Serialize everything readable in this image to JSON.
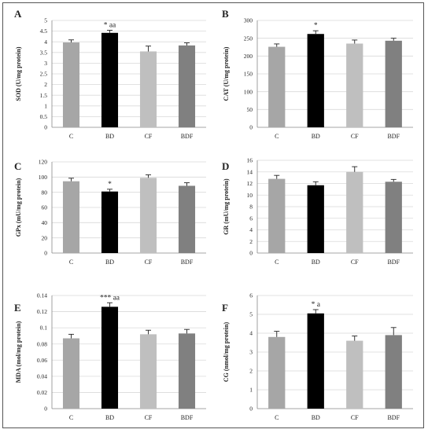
{
  "chart_data": [
    {
      "panel": "A",
      "type": "bar",
      "categories": [
        "C",
        "BD",
        "CF",
        "BDF"
      ],
      "values": [
        3.97,
        4.42,
        3.55,
        3.83
      ],
      "errors": [
        0.12,
        0.12,
        0.25,
        0.12
      ],
      "colors": [
        "#a6a6a6",
        "#000000",
        "#bfbfbf",
        "#808080"
      ],
      "annotations": [
        "",
        "* aa",
        "",
        ""
      ],
      "ylabel": "SOD (U/mg protein)",
      "ylim": [
        0,
        5
      ],
      "yticks": [
        "0",
        "0.5",
        "1",
        "1.5",
        "2",
        "2.5",
        "3",
        "3.5",
        "4",
        "4.5",
        "5"
      ],
      "grid": true
    },
    {
      "panel": "B",
      "type": "bar",
      "categories": [
        "C",
        "BD",
        "CF",
        "BDF"
      ],
      "values": [
        226,
        262,
        235,
        243
      ],
      "errors": [
        8,
        9,
        10,
        7
      ],
      "colors": [
        "#a6a6a6",
        "#000000",
        "#bfbfbf",
        "#808080"
      ],
      "annotations": [
        "",
        "*",
        "",
        ""
      ],
      "ylabel": "CAT (U/mg protein)",
      "ylim": [
        0,
        300
      ],
      "yticks": [
        "0",
        "50",
        "100",
        "150",
        "200",
        "250",
        "300"
      ],
      "grid": true
    },
    {
      "panel": "C",
      "type": "bar",
      "categories": [
        "C",
        "BD",
        "CF",
        "BDF"
      ],
      "values": [
        94.5,
        81,
        99,
        88.5
      ],
      "errors": [
        4,
        3,
        4,
        4
      ],
      "colors": [
        "#a6a6a6",
        "#000000",
        "#bfbfbf",
        "#808080"
      ],
      "annotations": [
        "",
        "*",
        "",
        ""
      ],
      "ylabel": "GPx (mU/mg protein)",
      "ylim": [
        0,
        120
      ],
      "yticks": [
        "0",
        "20",
        "40",
        "60",
        "80",
        "100",
        "120"
      ],
      "grid": true
    },
    {
      "panel": "D",
      "type": "bar",
      "categories": [
        "C",
        "BD",
        "CF",
        "BDF"
      ],
      "values": [
        12.8,
        11.7,
        14.0,
        12.3
      ],
      "errors": [
        0.6,
        0.6,
        0.9,
        0.4
      ],
      "colors": [
        "#a6a6a6",
        "#000000",
        "#bfbfbf",
        "#808080"
      ],
      "annotations": [
        "",
        "",
        "",
        ""
      ],
      "ylabel": "GR (mU/mg protein)",
      "ylim": [
        0,
        16
      ],
      "yticks": [
        "0",
        "2",
        "4",
        "6",
        "8",
        "10",
        "12",
        "14",
        "16"
      ],
      "grid": true
    },
    {
      "panel": "E",
      "type": "bar",
      "categories": [
        "C",
        "BD",
        "CF",
        "BDF"
      ],
      "values": [
        0.087,
        0.126,
        0.092,
        0.093
      ],
      "errors": [
        0.005,
        0.005,
        0.005,
        0.005
      ],
      "colors": [
        "#a6a6a6",
        "#000000",
        "#bfbfbf",
        "#808080"
      ],
      "annotations": [
        "",
        "*** aa",
        "",
        ""
      ],
      "ylabel": "MDA (mol/mg protein)",
      "ylim": [
        0,
        0.14
      ],
      "yticks": [
        "0",
        "0.02",
        "0.04",
        "0.06",
        "0.08",
        "0.1",
        "0.12",
        "0.14"
      ],
      "grid": true
    },
    {
      "panel": "F",
      "type": "bar",
      "categories": [
        "C",
        "BD",
        "CF",
        "BDF"
      ],
      "values": [
        3.8,
        5.05,
        3.6,
        3.9
      ],
      "errors": [
        0.3,
        0.2,
        0.25,
        0.4
      ],
      "colors": [
        "#a6a6a6",
        "#000000",
        "#bfbfbf",
        "#808080"
      ],
      "annotations": [
        "",
        "* a",
        "",
        ""
      ],
      "ylabel": "CG (nmol/mg protein)",
      "ylim": [
        0,
        6
      ],
      "yticks": [
        "0",
        "1",
        "2",
        "3",
        "4",
        "5",
        "6"
      ],
      "grid": true
    }
  ]
}
